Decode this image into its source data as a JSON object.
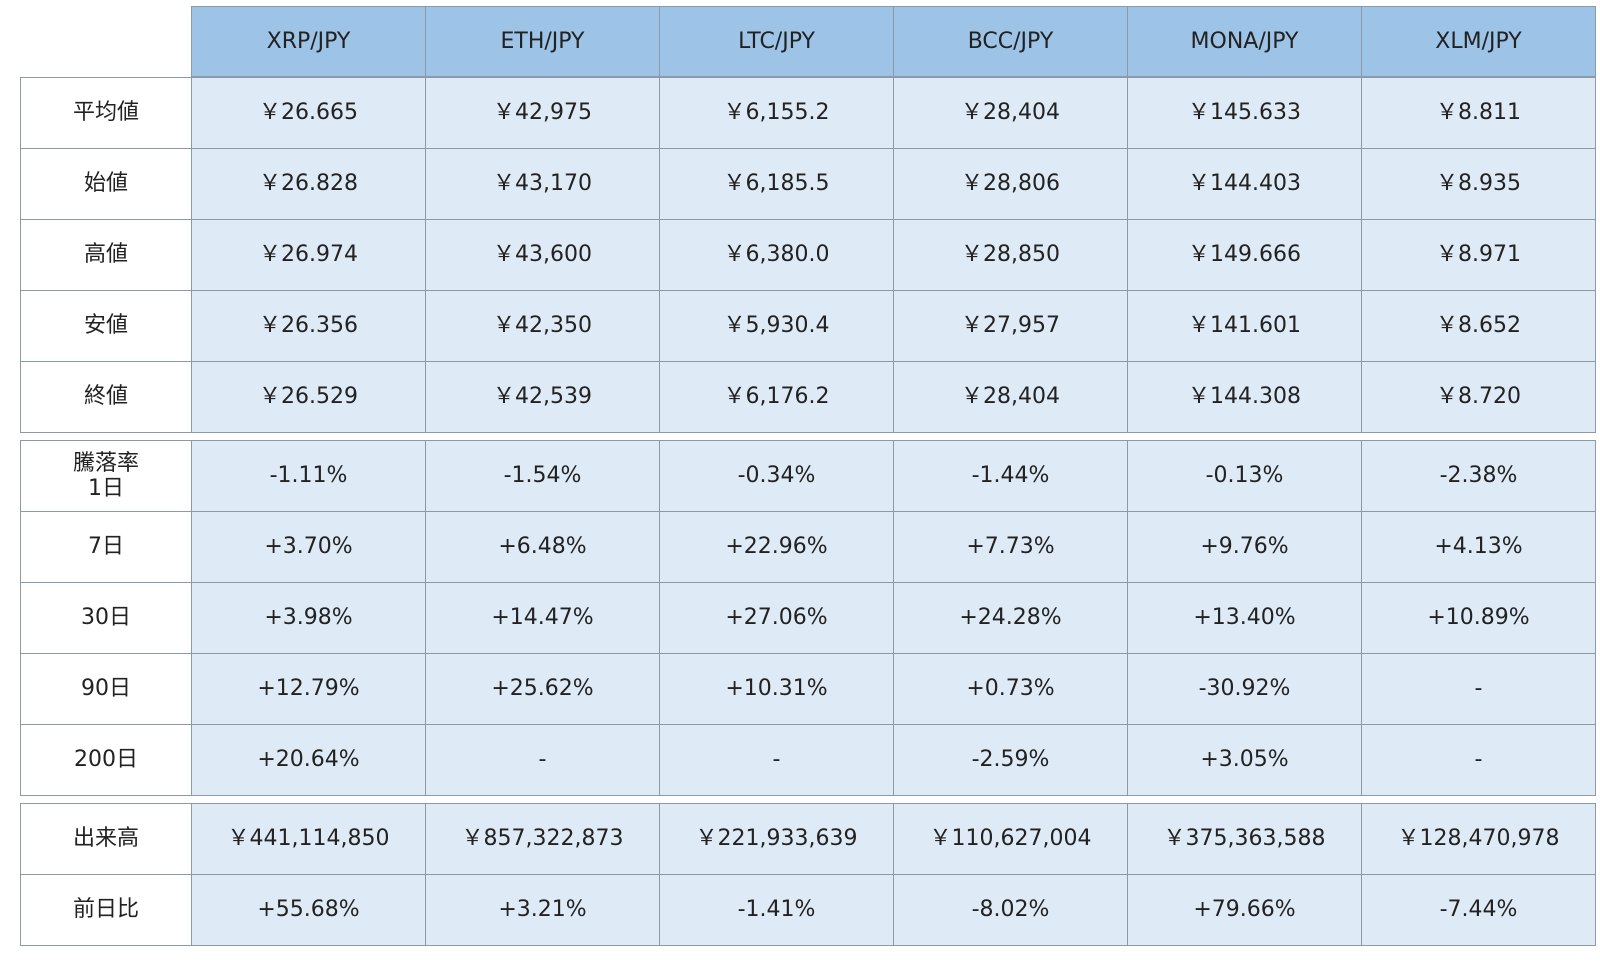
{
  "header": {
    "columns": [
      "XRP/JPY",
      "ETH/JPY",
      "LTC/JPY",
      "BCC/JPY",
      "MONA/JPY",
      "XLM/JPY"
    ]
  },
  "sections": [
    {
      "rows": [
        {
          "label": "平均値",
          "cells": [
            "￥26.665",
            "￥42,975",
            "￥6,155.2",
            "￥28,404",
            "￥145.633",
            "￥8.811"
          ]
        },
        {
          "label": "始値",
          "cells": [
            "￥26.828",
            "￥43,170",
            "￥6,185.5",
            "￥28,806",
            "￥144.403",
            "￥8.935"
          ]
        },
        {
          "label": "高値",
          "cells": [
            "￥26.974",
            "￥43,600",
            "￥6,380.0",
            "￥28,850",
            "￥149.666",
            "￥8.971"
          ]
        },
        {
          "label": "安値",
          "cells": [
            "￥26.356",
            "￥42,350",
            "￥5,930.4",
            "￥27,957",
            "￥141.601",
            "￥8.652"
          ]
        },
        {
          "label": "終値",
          "cells": [
            "￥26.529",
            "￥42,539",
            "￥6,176.2",
            "￥28,404",
            "￥144.308",
            "￥8.720"
          ]
        }
      ]
    },
    {
      "rows": [
        {
          "label": "騰落率\n1日",
          "cells": [
            "-1.11%",
            "-1.54%",
            "-0.34%",
            "-1.44%",
            "-0.13%",
            "-2.38%"
          ]
        },
        {
          "label": "7日",
          "cells": [
            "+3.70%",
            "+6.48%",
            "+22.96%",
            "+7.73%",
            "+9.76%",
            "+4.13%"
          ]
        },
        {
          "label": "30日",
          "cells": [
            "+3.98%",
            "+14.47%",
            "+27.06%",
            "+24.28%",
            "+13.40%",
            "+10.89%"
          ]
        },
        {
          "label": "90日",
          "cells": [
            "+12.79%",
            "+25.62%",
            "+10.31%",
            "+0.73%",
            "-30.92%",
            "-"
          ]
        },
        {
          "label": "200日",
          "cells": [
            "+20.64%",
            "-",
            "-",
            "-2.59%",
            "+3.05%",
            "-"
          ]
        }
      ]
    },
    {
      "rows": [
        {
          "label": "出来高",
          "cells": [
            "￥441,114,850",
            "￥857,322,873",
            "￥221,933,639",
            "￥110,627,004",
            "￥375,363,588",
            "￥128,470,978"
          ]
        },
        {
          "label": "前日比",
          "cells": [
            "+55.68%",
            "+3.21%",
            "-1.41%",
            "-8.02%",
            "+79.66%",
            "-7.44%"
          ]
        }
      ]
    }
  ]
}
